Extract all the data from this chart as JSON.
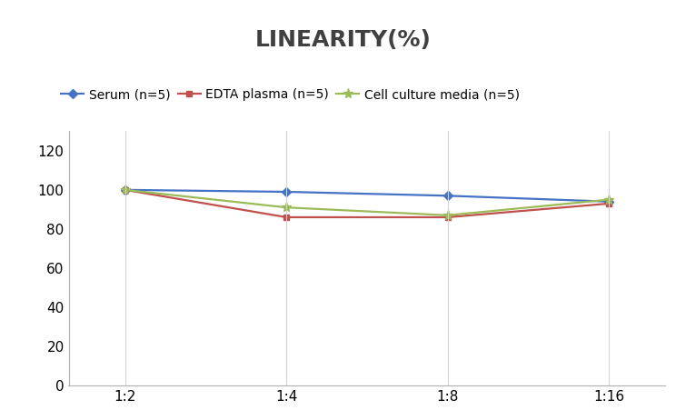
{
  "title": "LINEARITY(%)",
  "x_labels": [
    "1:2",
    "1:4",
    "1:8",
    "1:16"
  ],
  "x_positions": [
    0,
    1,
    2,
    3
  ],
  "series": [
    {
      "label": "Serum (n=5)",
      "values": [
        100,
        99,
        97,
        94
      ],
      "color": "#4472C4",
      "marker": "D",
      "markersize": 5,
      "linewidth": 1.6
    },
    {
      "label": "EDTA plasma (n=5)",
      "values": [
        100,
        86,
        86,
        93
      ],
      "color": "#C0504D",
      "marker": "s",
      "markersize": 5,
      "linewidth": 1.6
    },
    {
      "label": "Cell culture media (n=5)",
      "values": [
        100,
        91,
        87,
        95
      ],
      "color": "#9BBB59",
      "marker": "*",
      "markersize": 8,
      "linewidth": 1.6
    }
  ],
  "ylim": [
    0,
    130
  ],
  "yticks": [
    0,
    20,
    40,
    60,
    80,
    100,
    120
  ],
  "title_fontsize": 18,
  "legend_fontsize": 10,
  "tick_fontsize": 11,
  "background_color": "#ffffff",
  "grid_color": "#d3d3d3",
  "title_fontweight": "bold",
  "title_color": "#404040"
}
